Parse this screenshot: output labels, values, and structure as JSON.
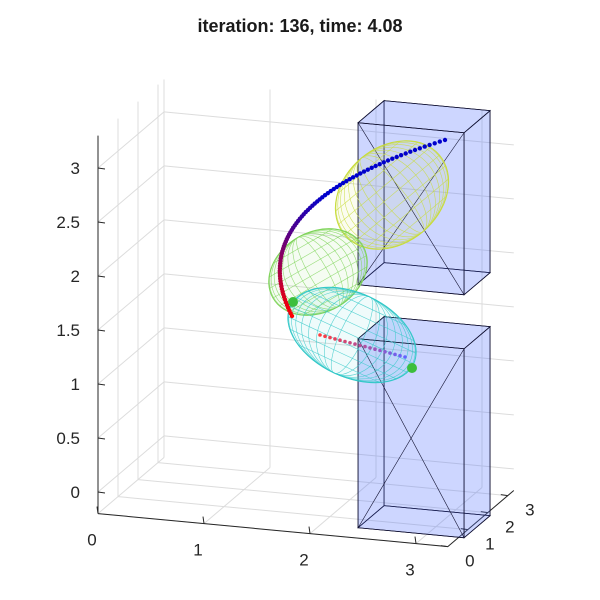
{
  "title": "iteration: 136, time: 4.08",
  "chart_data": {
    "type": "scatter",
    "title": "iteration: 136, time: 4.08",
    "xlabel": "",
    "ylabel": "",
    "zlabel": "",
    "xlim": [
      0,
      3.3
    ],
    "ylim": [
      0,
      3.3
    ],
    "zlim": [
      -0.2,
      3.3
    ],
    "x_ticks": [
      "0",
      "1",
      "2",
      "3"
    ],
    "y_ticks": [
      "0",
      "1",
      "2",
      "3"
    ],
    "z_ticks": [
      "0",
      "0.5",
      "1",
      "1.5",
      "2",
      "2.5",
      "3"
    ],
    "grid": true,
    "trajectory": {
      "color_start": "#ff0000",
      "color_end": "#0000cc",
      "points_screen_described": "red-to-blue dotted path curving from lower-left up and over to the upper-right"
    },
    "obstacles": [
      {
        "name": "upper box",
        "color": "#4169ff"
      },
      {
        "name": "lower box",
        "color": "#4169ff"
      }
    ],
    "ellipsoids": [
      {
        "name": "ellipsoid 1",
        "color": "#c8dc3c"
      },
      {
        "name": "ellipsoid 2",
        "color": "#7fd45a"
      },
      {
        "name": "ellipsoid 3",
        "color": "#32c8c8"
      }
    ]
  },
  "colors": {
    "box_fill": "#5a78ff",
    "box_edge": "#101030",
    "grid": "#dcdcdc",
    "axis": "#262626"
  }
}
